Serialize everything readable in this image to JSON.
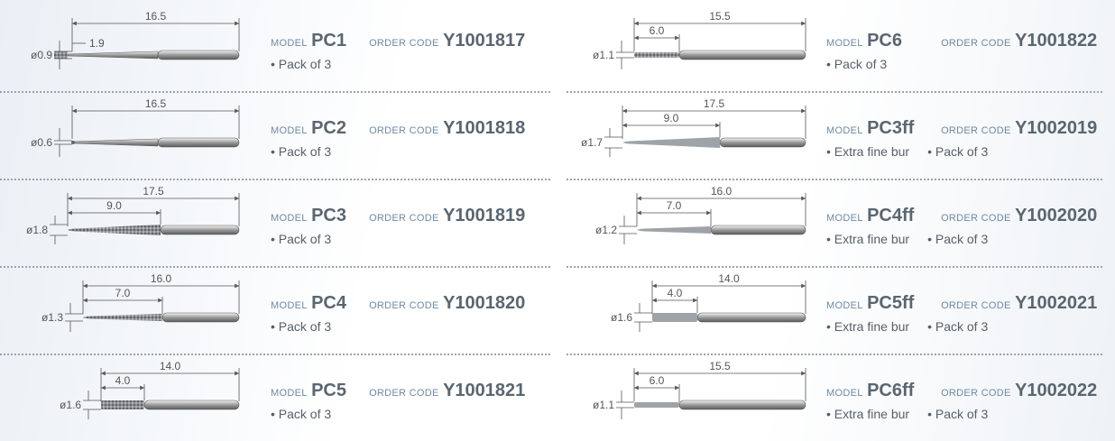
{
  "labels": {
    "model": "MODEL",
    "order_code": "ORDER CODE"
  },
  "columns": [
    {
      "items": [
        {
          "model": "PC1",
          "order_code": "Y1001817",
          "notes": [
            "Pack of 3"
          ],
          "length": "16.5",
          "tip": "1.9",
          "diameter": "ø0.9"
        },
        {
          "model": "PC2",
          "order_code": "Y1001818",
          "notes": [
            "Pack of 3"
          ],
          "length": "16.5",
          "diameter": "ø0.6"
        },
        {
          "model": "PC3",
          "order_code": "Y1001819",
          "notes": [
            "Pack of 3"
          ],
          "length": "17.5",
          "tip": "9.0",
          "diameter": "ø1.8"
        },
        {
          "model": "PC4",
          "order_code": "Y1001820",
          "notes": [
            "Pack of 3"
          ],
          "length": "16.0",
          "tip": "7.0",
          "diameter": "ø1.3"
        },
        {
          "model": "PC5",
          "order_code": "Y1001821",
          "notes": [
            "Pack of 3"
          ],
          "length": "14.0",
          "tip": "4.0",
          "diameter": "ø1.6"
        }
      ]
    },
    {
      "items": [
        {
          "model": "PC6",
          "order_code": "Y1001822",
          "notes": [
            "Pack of 3"
          ],
          "length": "15.5",
          "tip": "6.0",
          "diameter": "ø1.1"
        },
        {
          "model": "PC3ff",
          "order_code": "Y1002019",
          "notes": [
            "Extra fine bur",
            "Pack of 3"
          ],
          "length": "17.5",
          "tip": "9.0",
          "diameter": "ø1.7"
        },
        {
          "model": "PC4ff",
          "order_code": "Y1002020",
          "notes": [
            "Extra fine bur",
            "Pack of 3"
          ],
          "length": "16.0",
          "tip": "7.0",
          "diameter": "ø1.2"
        },
        {
          "model": "PC5ff",
          "order_code": "Y1002021",
          "notes": [
            "Extra fine bur",
            "Pack of 3"
          ],
          "length": "14.0",
          "tip": "4.0",
          "diameter": "ø1.6"
        },
        {
          "model": "PC6ff",
          "order_code": "Y1002022",
          "notes": [
            "Extra fine bur",
            "Pack of 3"
          ],
          "length": "15.5",
          "tip": "6.0",
          "diameter": "ø1.1"
        }
      ]
    }
  ]
}
